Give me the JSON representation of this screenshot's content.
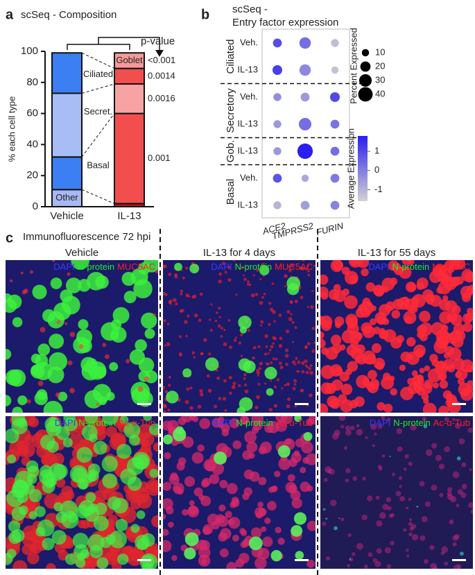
{
  "panel_labels": [
    "a",
    "b",
    "c"
  ],
  "chart_data": [
    {
      "type": "stacked_bar",
      "title": "scSeq - Composition",
      "y_label": "% each cell type",
      "categories": [
        "Vehicle",
        "IL-13"
      ],
      "series": [
        {
          "name": "Other",
          "colors": [
            "#a8b8f4",
            "#b01818"
          ],
          "values": [
            11,
            2
          ]
        },
        {
          "name": "Basal",
          "colors": [
            "#3c7ff2",
            "#f24e4e"
          ],
          "values": [
            21,
            58
          ],
          "p_value": "0.001"
        },
        {
          "name": "Secret.",
          "colors": [
            "#a8bdf6",
            "#f7a3a3"
          ],
          "values": [
            41,
            19
          ],
          "p_value": "0.0016"
        },
        {
          "name": "Ciliated",
          "colors": [
            "#3c7ff2",
            "#f24e4e"
          ],
          "values": [
            26,
            10
          ],
          "p_value": "0.0014"
        },
        {
          "name": "Goblet",
          "colors": [
            "#a8bdf6",
            "#f49a9a"
          ],
          "values": [
            0,
            10
          ],
          "p_value": "<0.001"
        }
      ],
      "p_label": "p-value",
      "ylim": [
        0,
        100
      ],
      "yticks": [
        0,
        20,
        40,
        60,
        80,
        100
      ]
    },
    {
      "type": "dot",
      "title": [
        "scSeq -",
        "Entry factor expression"
      ],
      "categories": [
        "ACE2",
        "TMPRSS2",
        "FURIN"
      ],
      "groups": [
        {
          "name": "Ciliated",
          "rows": [
            {
              "label": "Veh.",
              "percent": [
                15,
                25,
                12
              ],
              "expression": [
                0.9,
                0.3,
                -1.2
              ]
            },
            {
              "label": "IL-13",
              "percent": [
                18,
                25,
                10
              ],
              "expression": [
                1.2,
                -0.2,
                -1.3
              ]
            }
          ]
        },
        {
          "name": "Secretory",
          "rows": [
            {
              "label": "Veh.",
              "percent": [
                12,
                15,
                18
              ],
              "expression": [
                -0.3,
                -0.5,
                1.0
              ]
            },
            {
              "label": "IL-13",
              "percent": [
                12,
                30,
                15
              ],
              "expression": [
                -0.5,
                0.3,
                0.2
              ]
            }
          ]
        },
        {
          "name": "Gob.",
          "rows": [
            {
              "label": "IL-13",
              "percent": [
                12,
                45,
                15
              ],
              "expression": [
                -0.5,
                1.8,
                0.3
              ]
            }
          ]
        },
        {
          "name": "Basal",
          "rows": [
            {
              "label": "Veh.",
              "percent": [
                15,
                10,
                15
              ],
              "expression": [
                0.8,
                -0.8,
                0.1
              ]
            },
            {
              "label": "IL-13",
              "percent": [
                12,
                15,
                15
              ],
              "expression": [
                -1.0,
                -0.6,
                -0.1
              ]
            }
          ]
        }
      ],
      "size_legend": {
        "title": "Percent Expressed",
        "values": [
          10,
          20,
          30,
          40
        ]
      },
      "color_legend": {
        "title": "Average Expression",
        "lim": [
          -1.6,
          1.8
        ],
        "ticks": [
          -1,
          0,
          1
        ],
        "colors": [
          "#d3d3d3",
          "#2a1ef0"
        ]
      }
    }
  ],
  "panel_c": {
    "title": "Immunofluorescence 72 hpi",
    "columns": [
      "Vehicle",
      "IL-13 for 4 days",
      "IL-13 for 55 days"
    ],
    "rows": [
      {
        "stains": [
          {
            "name": "DAPI",
            "color": "#3a3aff"
          },
          {
            "name": "N-protein",
            "color": "#22ee22"
          },
          {
            "name": "MUC5AC",
            "color": "#ff2020"
          }
        ]
      },
      {
        "stains": [
          {
            "name": "DAPI",
            "color": "#3a3aff"
          },
          {
            "name": "N-protein",
            "color": "#22ee22"
          },
          {
            "name": "Ac-α-Tub",
            "color": "#ff2020"
          }
        ]
      }
    ]
  }
}
